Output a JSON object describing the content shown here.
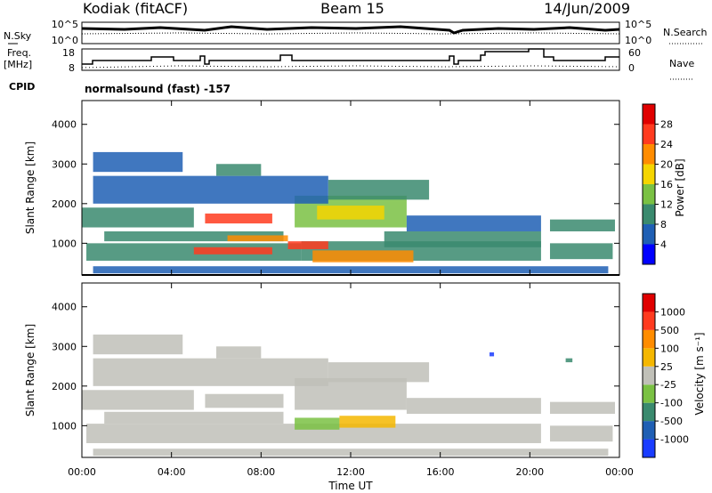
{
  "header": {
    "station": "Kodiak (fitACF)",
    "beam": "Beam 15",
    "date": "14/Jun/2009"
  },
  "top_panel": {
    "left_label": "N.Sky",
    "right_label": "N.Search",
    "left_ticks": [
      "10^5",
      "10^0"
    ],
    "right_ticks": [
      "10^5",
      "10^0"
    ]
  },
  "freq_panel": {
    "left_label": "Freq.",
    "left_unit": "[MHz]",
    "right_label": "Nave",
    "left_ticks": [
      "18",
      "8"
    ],
    "right_ticks": [
      "60",
      "0"
    ]
  },
  "cpid": {
    "label": "CPID",
    "value": "normalsound (fast) -157"
  },
  "chart_data": [
    {
      "type": "heatmap",
      "name": "power",
      "ylabel": "Slant Range [km]",
      "xlabel": "",
      "yticks": [
        "1000",
        "2000",
        "3000",
        "4000"
      ],
      "ylim": [
        200,
        4600
      ],
      "colorbar_label": "Power [dB]",
      "colorbar_ticks": [
        "4",
        "8",
        "12",
        "16",
        "20",
        "24",
        "28"
      ],
      "colorbar_colors": [
        "#0000ff",
        "#1f5fb4",
        "#3a8a6e",
        "#7ac143",
        "#f5d500",
        "#ff8c00",
        "#ff3b1f",
        "#e00000"
      ],
      "bands": [
        {
          "t": [
            0.5,
            23.5
          ],
          "r": [
            240,
            420
          ],
          "c": "#1f5fb4"
        },
        {
          "t": [
            0.2,
            9.8
          ],
          "r": [
            560,
            1000
          ],
          "c": "#3a8a6e"
        },
        {
          "t": [
            9.8,
            20.5
          ],
          "r": [
            560,
            1050
          ],
          "c": "#3a8a6e"
        },
        {
          "t": [
            20.9,
            23.7
          ],
          "r": [
            600,
            1000
          ],
          "c": "#3a8a6e"
        },
        {
          "t": [
            5.0,
            8.5
          ],
          "r": [
            720,
            900
          ],
          "c": "#ff3b1f"
        },
        {
          "t": [
            9.2,
            11.0
          ],
          "r": [
            850,
            1050
          ],
          "c": "#ff3b1f"
        },
        {
          "t": [
            10.3,
            14.8
          ],
          "r": [
            520,
            820
          ],
          "c": "#ff8c00"
        },
        {
          "t": [
            13.5,
            20.5
          ],
          "r": [
            900,
            1300
          ],
          "c": "#3a8a6e"
        },
        {
          "t": [
            1.0,
            9.0
          ],
          "r": [
            1050,
            1300
          ],
          "c": "#3a8a6e"
        },
        {
          "t": [
            6.5,
            9.2
          ],
          "r": [
            1050,
            1200
          ],
          "c": "#ff8c00"
        },
        {
          "t": [
            0.0,
            5.0
          ],
          "r": [
            1400,
            1900
          ],
          "c": "#3a8a6e"
        },
        {
          "t": [
            5.5,
            8.5
          ],
          "r": [
            1500,
            1750
          ],
          "c": "#ff3b1f"
        },
        {
          "t": [
            9.5,
            14.5
          ],
          "r": [
            1400,
            2200
          ],
          "c": "#7ac143"
        },
        {
          "t": [
            10.5,
            13.5
          ],
          "r": [
            1600,
            1950
          ],
          "c": "#f5d500"
        },
        {
          "t": [
            14.5,
            20.5
          ],
          "r": [
            1300,
            1700
          ],
          "c": "#1f5fb4"
        },
        {
          "t": [
            20.9,
            23.8
          ],
          "r": [
            1300,
            1600
          ],
          "c": "#3a8a6e"
        },
        {
          "t": [
            0.5,
            11.0
          ],
          "r": [
            2000,
            2700
          ],
          "c": "#1f5fb4"
        },
        {
          "t": [
            11.0,
            15.5
          ],
          "r": [
            2100,
            2600
          ],
          "c": "#3a8a6e"
        },
        {
          "t": [
            0.5,
            4.5
          ],
          "r": [
            2800,
            3300
          ],
          "c": "#1f5fb4"
        },
        {
          "t": [
            6.0,
            8.0
          ],
          "r": [
            2700,
            3000
          ],
          "c": "#3a8a6e"
        }
      ]
    },
    {
      "type": "heatmap",
      "name": "velocity",
      "ylabel": "Slant Range [km]",
      "xlabel": "Time UT",
      "xticks": [
        "00:00",
        "04:00",
        "08:00",
        "12:00",
        "16:00",
        "20:00",
        "00:00"
      ],
      "yticks": [
        "1000",
        "2000",
        "3000",
        "4000"
      ],
      "xlim": [
        0,
        24
      ],
      "ylim": [
        200,
        4600
      ],
      "colorbar_label": "Velocity [m s⁻¹]",
      "colorbar_ticks": [
        "1000",
        "500",
        "100",
        "25",
        "-25",
        "-100",
        "-500",
        "-1000"
      ],
      "colorbar_colors": [
        "#1a3cff",
        "#1f5fb4",
        "#3a8a6e",
        "#7ac143",
        "#c0c0b8",
        "#f5b700",
        "#ff8c00",
        "#ff3b1f",
        "#e00000"
      ],
      "bands": [
        {
          "t": [
            0.5,
            23.5
          ],
          "r": [
            240,
            420
          ],
          "c": "#c0c0b8"
        },
        {
          "t": [
            0.2,
            20.5
          ],
          "r": [
            560,
            1050
          ],
          "c": "#c0c0b8"
        },
        {
          "t": [
            20.9,
            23.7
          ],
          "r": [
            600,
            1000
          ],
          "c": "#c0c0b8"
        },
        {
          "t": [
            9.5,
            11.5
          ],
          "r": [
            900,
            1200
          ],
          "c": "#7ac143"
        },
        {
          "t": [
            11.5,
            14.0
          ],
          "r": [
            950,
            1250
          ],
          "c": "#f5b700"
        },
        {
          "t": [
            1.0,
            9.0
          ],
          "r": [
            1050,
            1350
          ],
          "c": "#c0c0b8"
        },
        {
          "t": [
            0.0,
            5.0
          ],
          "r": [
            1400,
            1900
          ],
          "c": "#c0c0b8"
        },
        {
          "t": [
            5.5,
            9.0
          ],
          "r": [
            1450,
            1800
          ],
          "c": "#c0c0b8"
        },
        {
          "t": [
            9.5,
            14.5
          ],
          "r": [
            1400,
            2200
          ],
          "c": "#c0c0b8"
        },
        {
          "t": [
            14.5,
            20.5
          ],
          "r": [
            1300,
            1700
          ],
          "c": "#c0c0b8"
        },
        {
          "t": [
            20.9,
            23.8
          ],
          "r": [
            1300,
            1600
          ],
          "c": "#c0c0b8"
        },
        {
          "t": [
            0.5,
            11.0
          ],
          "r": [
            2000,
            2700
          ],
          "c": "#c0c0b8"
        },
        {
          "t": [
            11.0,
            15.5
          ],
          "r": [
            2100,
            2600
          ],
          "c": "#c0c0b8"
        },
        {
          "t": [
            0.5,
            4.5
          ],
          "r": [
            2800,
            3300
          ],
          "c": "#c0c0b8"
        },
        {
          "t": [
            6.0,
            8.0
          ],
          "r": [
            2700,
            3000
          ],
          "c": "#c0c0b8"
        },
        {
          "t": [
            18.2,
            18.4
          ],
          "r": [
            2750,
            2850
          ],
          "c": "#1a3cff"
        },
        {
          "t": [
            21.6,
            21.9
          ],
          "r": [
            2600,
            2700
          ],
          "c": "#3a8a6e"
        }
      ]
    }
  ]
}
